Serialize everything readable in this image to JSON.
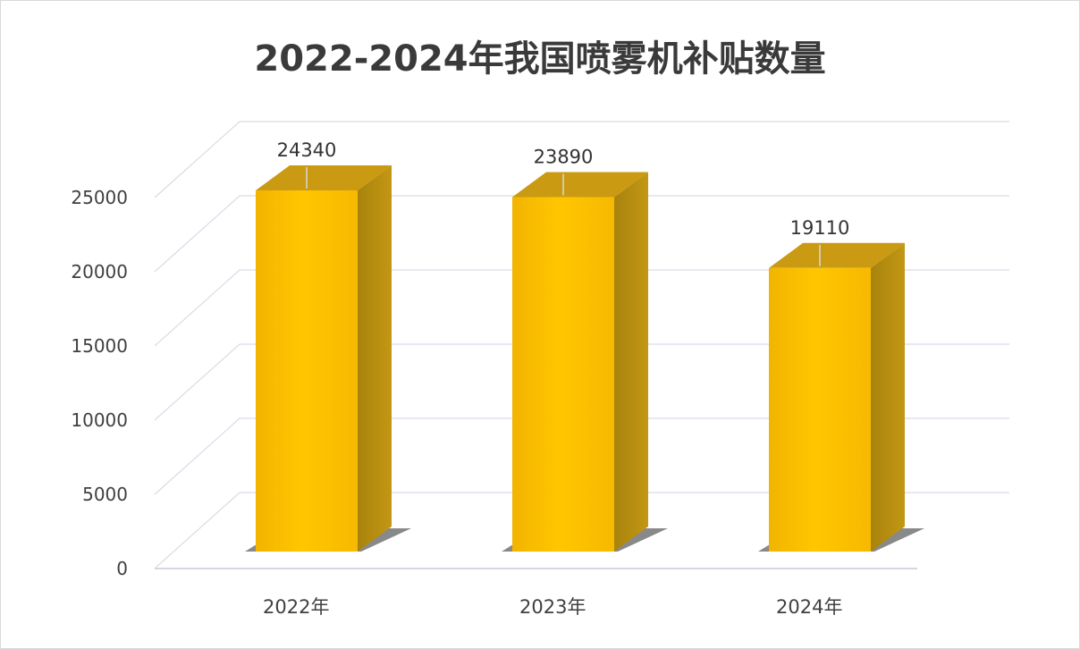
{
  "chart_data": {
    "type": "bar",
    "title": "2022-2024年我国喷雾机补贴数量",
    "categories": [
      "2022年",
      "2023年",
      "2024年"
    ],
    "values": [
      24340,
      23890,
      19110
    ],
    "data_labels": [
      "24340",
      "23890",
      "19110"
    ],
    "yticks": [
      "0",
      "5000",
      "10000",
      "15000",
      "20000",
      "25000"
    ],
    "ylim": [
      0,
      25000
    ],
    "xlabel": "",
    "ylabel": "",
    "grid": true,
    "legend": "none",
    "colors": {
      "bar_front": "#ffc200",
      "bar_side": "#b08a10",
      "bar_top": "#c99a12",
      "grid": "#d9dbe6"
    }
  }
}
